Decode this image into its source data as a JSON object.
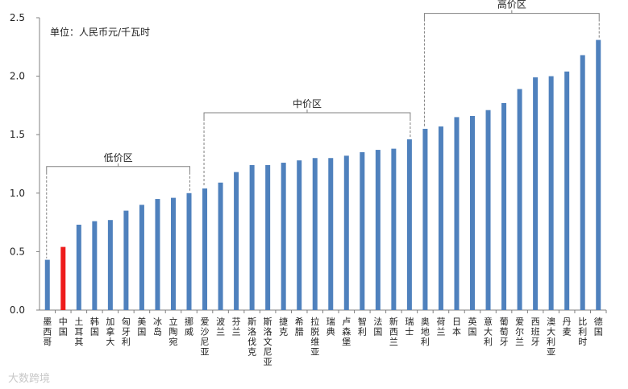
{
  "chart_data": {
    "type": "bar",
    "unit": "单位：人民币元/千瓦时",
    "ylim": [
      0,
      2.5
    ],
    "yticks": [
      "0.0",
      "0.5",
      "1.0",
      "1.5",
      "2.0",
      "2.5"
    ],
    "categories": [
      "墨西哥",
      "中国",
      "土耳其",
      "韩国",
      "加拿大",
      "匈牙利",
      "美国",
      "冰岛",
      "立陶宛",
      "挪威",
      "爱沙尼亚",
      "波兰",
      "芬兰",
      "斯洛伐克",
      "斯洛文尼亚",
      "捷克",
      "希腊",
      "拉脱维亚",
      "瑞典",
      "卢森堡",
      "智利",
      "法国",
      "新西兰",
      "瑞士",
      "奥地利",
      "荷兰",
      "日本",
      "英国",
      "意大利",
      "葡萄牙",
      "爱尔兰",
      "西班牙",
      "澳大利亚",
      "丹麦",
      "比利时",
      "德国"
    ],
    "values": [
      0.43,
      0.54,
      0.73,
      0.76,
      0.77,
      0.85,
      0.9,
      0.95,
      0.96,
      1.0,
      1.04,
      1.09,
      1.18,
      1.24,
      1.24,
      1.26,
      1.28,
      1.3,
      1.3,
      1.32,
      1.35,
      1.37,
      1.38,
      1.46,
      1.55,
      1.57,
      1.65,
      1.66,
      1.71,
      1.77,
      1.89,
      1.99,
      2.0,
      2.04,
      2.18,
      2.31
    ],
    "highlight_index": 1,
    "colors": {
      "bar": "#4f81bd",
      "highlight": "#ee1c1c",
      "bracket": "#808080",
      "axis": "#808080"
    },
    "regions": [
      {
        "label": "低价区",
        "start": 0,
        "end": 9
      },
      {
        "label": "中价区",
        "start": 10,
        "end": 23
      },
      {
        "label": "高价区",
        "start": 24,
        "end": 35
      }
    ]
  },
  "watermark": "大数跨境"
}
